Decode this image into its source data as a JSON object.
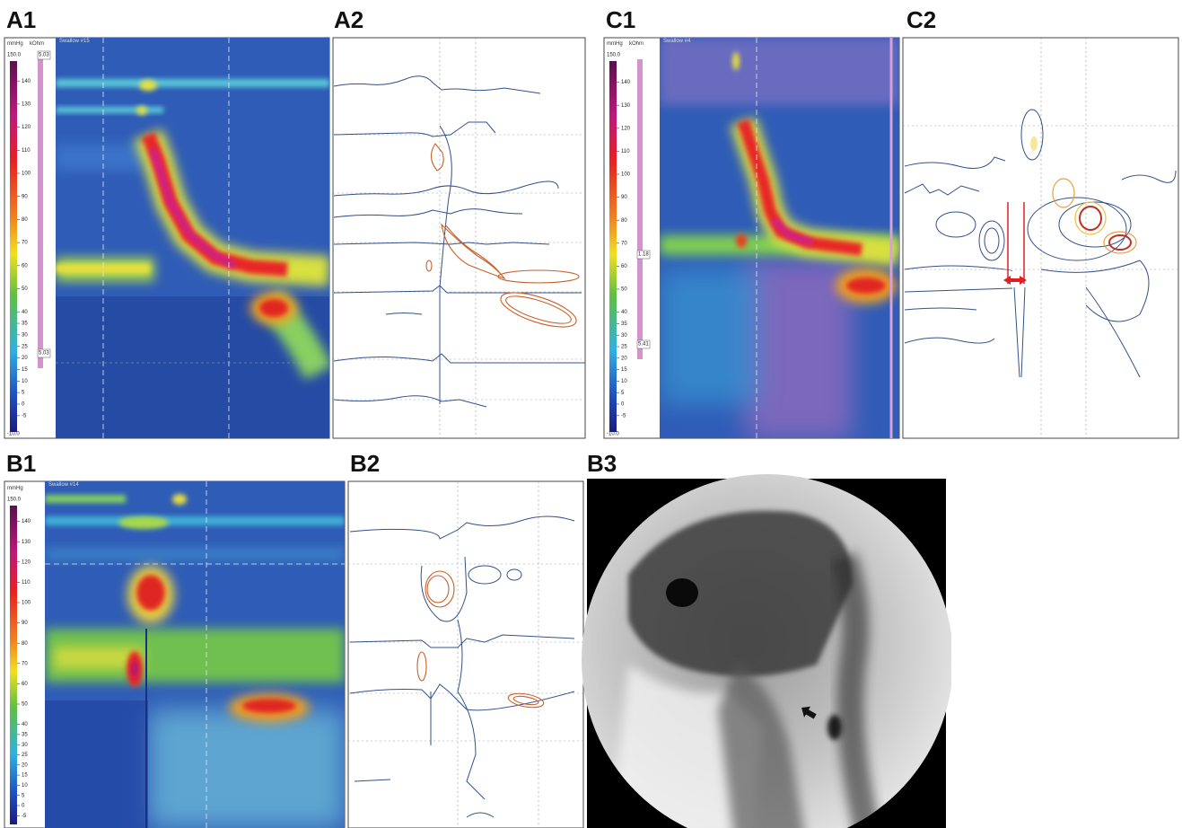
{
  "panels": [
    {
      "label": "A1",
      "pressure_unit": "mmHg",
      "impedance_unit": "kOhm",
      "pressure_max": "150.0",
      "pressure_min": "-10.0",
      "pressure_ticks": [
        140,
        130,
        120,
        110,
        100,
        90,
        80,
        70,
        60,
        50,
        40,
        35,
        30,
        25,
        20,
        15,
        10,
        5,
        0,
        -5
      ],
      "impedance_top": "5.03",
      "impedance_bottom": "5.03",
      "swallow": "Swallow #15"
    },
    {
      "label": "A2"
    },
    {
      "label": "C1",
      "pressure_unit": "mmHg",
      "impedance_unit": "kOhm",
      "pressure_max": "150.0",
      "pressure_min": "-10.0",
      "pressure_ticks": [
        140,
        130,
        120,
        110,
        100,
        90,
        80,
        70,
        60,
        50,
        40,
        35,
        30,
        25,
        20,
        15,
        10,
        5,
        0,
        -5
      ],
      "impedance_top": "1.18",
      "impedance_bottom": "5.41",
      "swallow": "Swallow #4"
    },
    {
      "label": "C2"
    },
    {
      "label": "B1",
      "pressure_unit": "mmHg",
      "pressure_max": "150.0",
      "pressure_ticks": [
        140,
        130,
        120,
        110,
        100,
        90,
        80,
        70,
        60,
        50,
        40,
        35,
        30,
        25,
        20,
        15,
        10,
        5,
        0,
        -5
      ],
      "swallow": "Swallow #14"
    },
    {
      "label": "B2"
    },
    {
      "label": "B3"
    }
  ]
}
